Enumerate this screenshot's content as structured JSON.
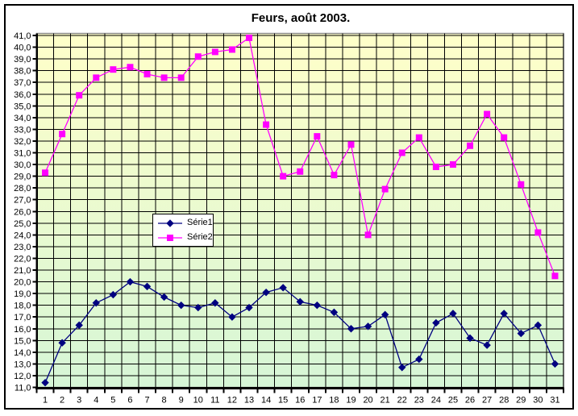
{
  "chart_data": {
    "type": "line",
    "title": "Feurs, août 2003.",
    "xlabel": "",
    "ylabel": "",
    "ylim": [
      11.0,
      41.0
    ],
    "ytick_step": 1.0,
    "decimal_style": "comma",
    "grid": "both-black",
    "x_categories": [
      "1",
      "2",
      "3",
      "4",
      "5",
      "6",
      "7",
      "8",
      "9",
      "10",
      "11",
      "12",
      "13",
      "14",
      "15",
      "16",
      "17",
      "18",
      "19",
      "20",
      "21",
      "22",
      "23",
      "24",
      "25",
      "26",
      "27",
      "28",
      "29",
      "30",
      "31"
    ],
    "y_tick_labels": [
      "41,0",
      "40,0",
      "39,0",
      "38,0",
      "37,0",
      "36,0",
      "35,0",
      "34,0",
      "33,0",
      "32,0",
      "31,0",
      "30,0",
      "29,0",
      "28,0",
      "27,0",
      "26,0",
      "25,0",
      "24,0",
      "23,0",
      "22,0",
      "21,0",
      "20,0",
      "19,0",
      "18,0",
      "17,0",
      "16,0",
      "15,0",
      "14,0",
      "13,0",
      "12,0",
      "11,0"
    ],
    "series": [
      {
        "name": "Série1",
        "color": "#000080",
        "marker": "diamond",
        "values": [
          11.4,
          14.8,
          16.3,
          18.2,
          18.9,
          20.0,
          19.6,
          18.7,
          18.0,
          17.8,
          18.2,
          17.0,
          17.8,
          19.1,
          19.5,
          18.3,
          18.0,
          17.4,
          16.0,
          16.2,
          17.2,
          12.7,
          13.4,
          16.5,
          17.3,
          15.2,
          14.6,
          17.3,
          15.6,
          16.3,
          13.0
        ]
      },
      {
        "name": "Série2",
        "color": "#FF00FF",
        "marker": "square",
        "values": [
          29.3,
          32.6,
          35.9,
          37.4,
          38.1,
          38.3,
          37.7,
          37.4,
          37.4,
          39.2,
          39.6,
          39.8,
          40.8,
          33.4,
          29.0,
          29.4,
          32.4,
          29.1,
          31.7,
          24.0,
          27.9,
          31.0,
          32.3,
          29.8,
          30.0,
          31.6,
          34.3,
          32.3,
          28.3,
          24.2,
          20.5
        ]
      }
    ],
    "legend": {
      "position": "inside-center-left",
      "entries": [
        "Série1",
        "Série2"
      ]
    },
    "colors": {
      "plot_bg_top": "#FFFFC9",
      "plot_bg_bottom": "#D6F6D6",
      "gridline": "#000000",
      "plot_border": "#8C8C8C",
      "axis": "#000000",
      "text": "#000000",
      "outer_border": "#000000",
      "page_bg": "#FFFFFF",
      "legend_bg": "#FFFFFF"
    }
  }
}
